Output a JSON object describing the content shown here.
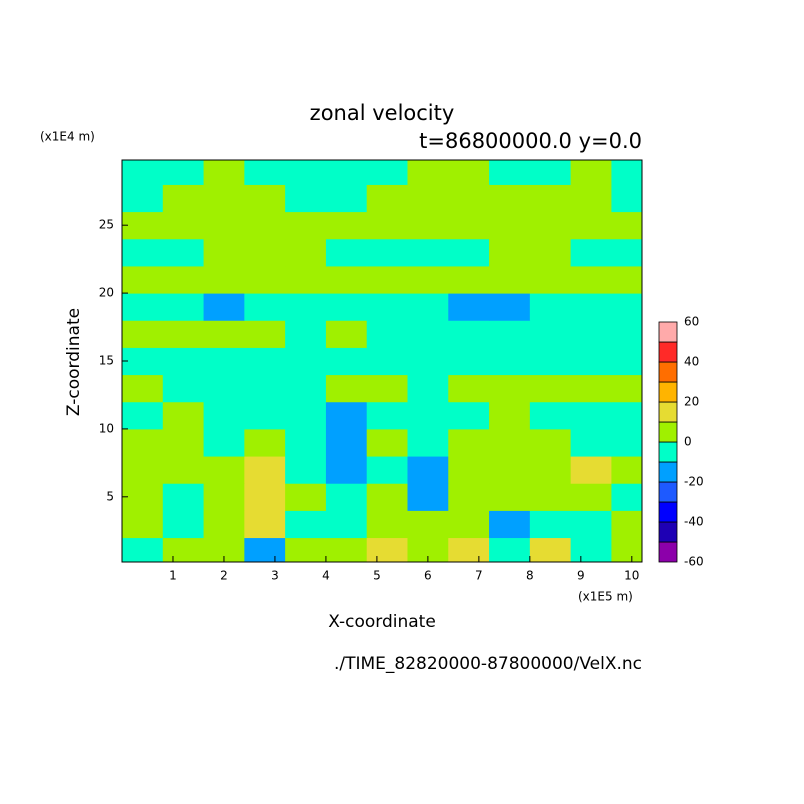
{
  "chart_data": {
    "type": "contour",
    "title": "zonal velocity",
    "subtitle": "t=86800000.0 y=0.0",
    "x_label": "X-coordinate",
    "y_label": "Z-coordinate",
    "x_unit": "(x1E5 m)",
    "y_unit": "(x1E4 m)",
    "footer": "./TIME_82820000-87800000/VelX.nc",
    "xlim": [
      0,
      10.2
    ],
    "ylim": [
      0.2,
      29.8
    ],
    "xticks": [
      1,
      2,
      3,
      4,
      5,
      6,
      7,
      8,
      9,
      10
    ],
    "yticks": [
      5,
      10,
      15,
      20,
      25
    ],
    "x": [
      0.4,
      1.2,
      2.0,
      2.8,
      3.6,
      4.4,
      5.2,
      6.0,
      6.8,
      7.6,
      8.4,
      9.2,
      10.0
    ],
    "y": [
      1,
      3,
      5,
      7,
      9,
      11,
      13,
      15,
      17,
      19,
      21,
      23,
      25,
      27,
      29
    ],
    "z": [
      [
        -5,
        5,
        5,
        -15,
        5,
        5,
        15,
        5,
        15,
        -5,
        15,
        -5,
        5
      ],
      [
        5,
        -5,
        5,
        15,
        -5,
        -5,
        5,
        5,
        5,
        -15,
        -5,
        -5,
        5
      ],
      [
        5,
        -5,
        5,
        15,
        5,
        -5,
        5,
        -15,
        5,
        5,
        5,
        5,
        -5
      ],
      [
        5,
        5,
        5,
        15,
        -5,
        -15,
        -5,
        -15,
        5,
        5,
        5,
        15,
        5
      ],
      [
        5,
        5,
        -5,
        5,
        -5,
        -15,
        5,
        -5,
        5,
        5,
        5,
        -5,
        -5
      ],
      [
        -5,
        5,
        -5,
        -5,
        -5,
        -15,
        -5,
        -5,
        -5,
        5,
        -5,
        -5,
        -5
      ],
      [
        5,
        -5,
        -5,
        -5,
        -5,
        5,
        5,
        -5,
        5,
        5,
        5,
        5,
        5
      ],
      [
        -5,
        -5,
        -5,
        -5,
        -5,
        -5,
        -5,
        -5,
        -5,
        -5,
        -5,
        -5,
        -5
      ],
      [
        5,
        5,
        5,
        5,
        -5,
        5,
        -5,
        -5,
        -5,
        -5,
        -5,
        -5,
        -5
      ],
      [
        -5,
        -5,
        -15,
        -5,
        -5,
        -5,
        -5,
        -5,
        -15,
        -15,
        -5,
        -5,
        -5
      ],
      [
        5,
        5,
        5,
        5,
        5,
        5,
        5,
        5,
        5,
        5,
        5,
        5,
        5
      ],
      [
        -5,
        -5,
        5,
        5,
        5,
        -5,
        -5,
        -5,
        -5,
        5,
        5,
        -5,
        -5
      ],
      [
        5,
        5,
        5,
        5,
        5,
        5,
        5,
        5,
        5,
        5,
        5,
        5,
        5
      ],
      [
        -5,
        5,
        5,
        5,
        -5,
        -5,
        5,
        5,
        5,
        5,
        5,
        5,
        -5
      ],
      [
        -5,
        -5,
        5,
        -5,
        -5,
        -5,
        -5,
        5,
        5,
        -5,
        -5,
        5,
        -5
      ]
    ],
    "levels": [
      -60,
      -50,
      -40,
      -30,
      -20,
      -10,
      0,
      10,
      20,
      30,
      40,
      50,
      60
    ],
    "colors": [
      "#8c00aa",
      "#1e00b4",
      "#0000ff",
      "#1e5aff",
      "#00a0ff",
      "#00ffc8",
      "#a0f000",
      "#e6dc32",
      "#ffb400",
      "#ff6e00",
      "#ff2a28",
      "#ffaaaa"
    ],
    "colorbar_ticks": [
      -60,
      -40,
      -20,
      0,
      20,
      40,
      60
    ]
  }
}
